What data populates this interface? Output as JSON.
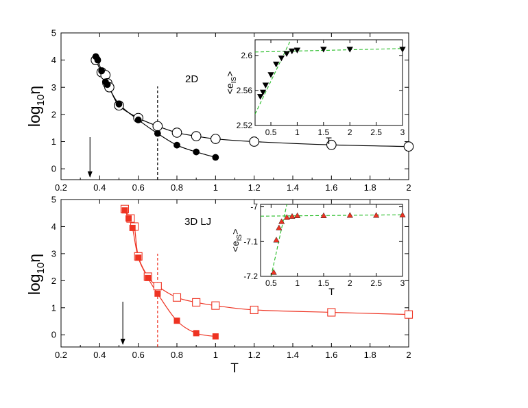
{
  "chart_data": [
    {
      "type": "scatter",
      "panel": "top",
      "annotation": "2D",
      "xlabel": "",
      "ylabel": "log10η",
      "xlim": [
        0.2,
        2
      ],
      "ylim": [
        -0.4,
        5
      ],
      "xticks": [
        0.2,
        0.4,
        0.6,
        0.8,
        1,
        1.2,
        1.4,
        1.6,
        1.8,
        2
      ],
      "yticks": [
        0,
        1,
        2,
        3,
        4,
        5
      ],
      "color": "#000000",
      "vline_dashed_x": 0.7,
      "arrow_x": 0.35,
      "series": [
        {
          "marker": "circle-open",
          "x": [
            0.38,
            0.41,
            0.43,
            0.44,
            0.45,
            0.5,
            0.6,
            0.7,
            0.8,
            0.9,
            1.0,
            1.2,
            1.6,
            2.0
          ],
          "y": [
            4.0,
            3.55,
            3.45,
            3.15,
            3.0,
            2.33,
            1.87,
            1.57,
            1.33,
            1.2,
            1.1,
            1.0,
            0.88,
            0.82
          ]
        },
        {
          "marker": "circle-filled",
          "x": [
            0.38,
            0.39,
            0.41,
            0.43,
            0.44,
            0.5,
            0.6,
            0.7,
            0.8,
            0.9,
            1.0
          ],
          "y": [
            4.13,
            4.0,
            3.6,
            3.2,
            3.1,
            2.38,
            1.8,
            1.3,
            0.87,
            0.62,
            0.42
          ]
        }
      ],
      "inset": {
        "type": "scatter",
        "xlabel": "T",
        "ylabel": "<eIS>",
        "xlim": [
          0.2,
          3
        ],
        "ylim": [
          2.52,
          2.618
        ],
        "xticks": [
          0.5,
          1,
          1.5,
          2,
          2.5,
          3
        ],
        "xtick_labels": [
          "0.5",
          "1",
          "1.5",
          "2",
          "2.5",
          "3"
        ],
        "yticks": [
          2.52,
          2.56,
          2.6
        ],
        "ytick_labels": [
          "2.52",
          "2.56",
          "2.6"
        ],
        "marker": "triangle-down-filled",
        "marker_color": "#000000",
        "fit_color": "#22bb22",
        "x": [
          0.3,
          0.35,
          0.4,
          0.5,
          0.6,
          0.7,
          0.8,
          0.9,
          1.0,
          1.5,
          2.0,
          3.0
        ],
        "y": [
          2.553,
          2.558,
          2.566,
          2.578,
          2.59,
          2.597,
          2.602,
          2.605,
          2.606,
          2.607,
          2.607,
          2.607
        ],
        "fit_lines": [
          {
            "x": [
              0.2,
              0.87
            ],
            "y": [
              2.533,
              2.617
            ]
          },
          {
            "x": [
              0.2,
              3.0
            ],
            "y": [
              2.604,
              2.608
            ]
          }
        ]
      }
    },
    {
      "type": "scatter",
      "panel": "bottom",
      "annotation": "3D LJ",
      "xlabel": "T",
      "ylabel": "log10η",
      "xlim": [
        0.2,
        2
      ],
      "ylim": [
        -0.45,
        5
      ],
      "xticks": [
        0.2,
        0.4,
        0.6,
        0.8,
        1,
        1.2,
        1.4,
        1.6,
        1.8,
        2
      ],
      "yticks": [
        0,
        1,
        2,
        3,
        4,
        5
      ],
      "color": "#ee3322",
      "vline_dashed_x": 0.7,
      "arrow_x": 0.52,
      "series": [
        {
          "marker": "square-open",
          "x": [
            0.53,
            0.56,
            0.58,
            0.6,
            0.65,
            0.7,
            0.8,
            0.9,
            1.0,
            1.2,
            1.6,
            2.0
          ],
          "y": [
            4.65,
            4.3,
            4.0,
            2.9,
            2.15,
            1.8,
            1.38,
            1.2,
            1.08,
            0.92,
            0.83,
            0.75
          ]
        },
        {
          "marker": "square-filled",
          "x": [
            0.53,
            0.55,
            0.57,
            0.6,
            0.65,
            0.7,
            0.8,
            0.9,
            1.0
          ],
          "y": [
            4.6,
            4.3,
            3.95,
            2.85,
            2.1,
            1.52,
            0.52,
            0.06,
            -0.06
          ]
        }
      ],
      "inset": {
        "type": "scatter",
        "xlabel": "T",
        "ylabel": "<eIS>",
        "xlim": [
          0.3,
          3
        ],
        "ylim": [
          -7.2,
          -6.993
        ],
        "xticks": [
          0.5,
          1,
          1.5,
          2,
          2.5,
          3
        ],
        "xtick_labels": [
          "0.5",
          "1",
          "1.5",
          "2",
          "2.5",
          "3"
        ],
        "yticks": [
          -7.2,
          -7.1,
          -7.0
        ],
        "ytick_labels": [
          "-7.2",
          "-7.1",
          "-7"
        ],
        "marker": "triangle-up-filled",
        "marker_color": "#ee3322",
        "fit_color": "#22bb22",
        "x": [
          0.55,
          0.6,
          0.65,
          0.7,
          0.8,
          0.9,
          1.0,
          1.5,
          2.0,
          2.5,
          3.0
        ],
        "y": [
          -7.188,
          -7.095,
          -7.06,
          -7.042,
          -7.03,
          -7.027,
          -7.025,
          -7.025,
          -7.024,
          -7.024,
          -7.023
        ],
        "fit_lines": [
          {
            "x": [
              0.5,
              0.8
            ],
            "y": [
              -7.2,
              -6.993
            ]
          },
          {
            "x": [
              0.3,
              3.0
            ],
            "y": [
              -7.027,
              -7.023
            ]
          }
        ]
      }
    }
  ]
}
